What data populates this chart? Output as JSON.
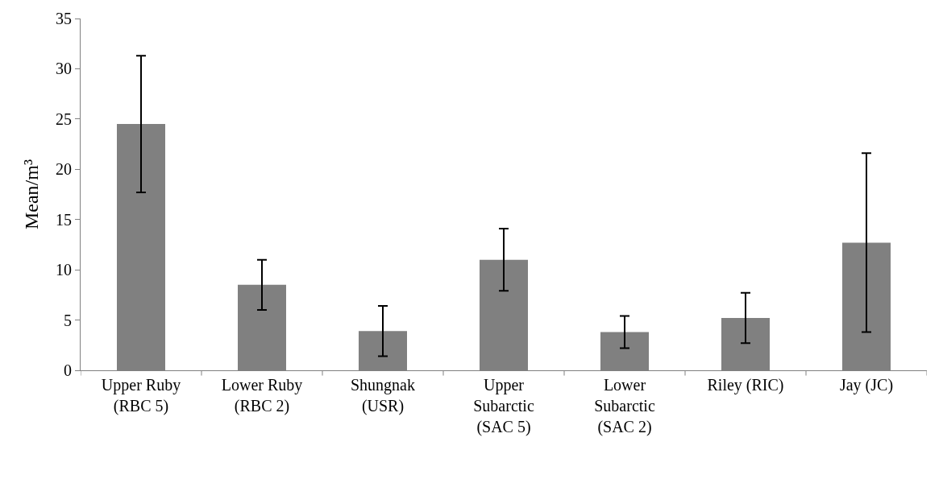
{
  "chart_data": {
    "type": "bar",
    "ylabel": "Mean/m³",
    "categories": [
      "Upper Ruby\n(RBC 5)",
      "Lower Ruby\n(RBC 2)",
      "Shungnak\n(USR)",
      "Upper\nSubarctic\n(SAC 5)",
      "Lower\nSubarctic\n(SAC 2)",
      "Riley (RIC)",
      "Jay (JC)"
    ],
    "values": [
      24.5,
      8.5,
      3.9,
      11.0,
      3.8,
      5.2,
      12.7
    ],
    "errors": [
      6.8,
      2.5,
      2.5,
      3.1,
      1.6,
      2.5,
      8.9
    ],
    "color": "#808080",
    "ylim": [
      0,
      35
    ],
    "yticks": [
      0,
      5,
      10,
      15,
      20,
      25,
      30,
      35
    ]
  }
}
